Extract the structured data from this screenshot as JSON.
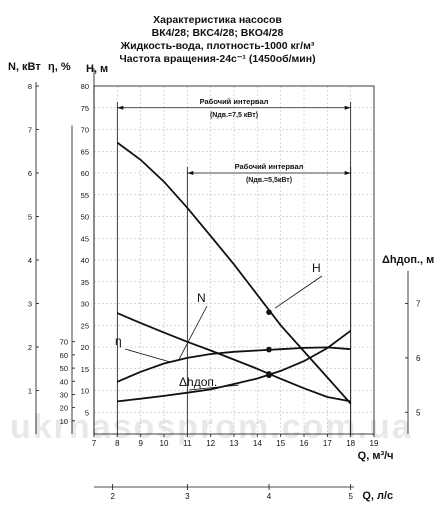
{
  "title_lines": [
    "Характеристика насосов",
    "ВК4/28; ВКС4/28; ВКО4/28",
    "Жидкость-вода, плотность-1000 кг/м³",
    "Частота вращения-24с⁻¹ (1450об/мин)"
  ],
  "watermark": "ukrnasosprom.com.ua",
  "colors": {
    "curve": "#111111",
    "grid": "#b0b0b0",
    "background": "#ffffff"
  },
  "chart_data": {
    "type": "line",
    "grid": true,
    "x_axis": {
      "label": "Q, м³/ч",
      "range": [
        7,
        19
      ],
      "ticks": [
        "7",
        "8",
        "9",
        "10",
        "11",
        "12",
        "13",
        "14",
        "15",
        "16",
        "17",
        "18",
        "19"
      ]
    },
    "x2_axis": {
      "label": "Q, л/с",
      "ticks": [
        {
          "label": "2",
          "q_m3h": 7.8
        },
        {
          "label": "3",
          "q_m3h": 11.0
        },
        {
          "label": "4",
          "q_m3h": 14.5
        },
        {
          "label": "5",
          "q_m3h": 18.0
        }
      ]
    },
    "h_axis": {
      "label": "Н, м",
      "range": [
        0,
        80
      ],
      "ticks": [
        "5",
        "10",
        "15",
        "20",
        "25",
        "30",
        "35",
        "40",
        "45",
        "50",
        "55",
        "60",
        "65",
        "70",
        "75",
        "80"
      ]
    },
    "n_axis": {
      "label": "N, кВт",
      "ticks": [
        "1",
        "2",
        "3",
        "4",
        "5",
        "6",
        "7",
        "8"
      ],
      "range": [
        0,
        8
      ]
    },
    "eta_axis": {
      "label": "η, %",
      "ticks": [
        "10",
        "20",
        "30",
        "40",
        "50",
        "60",
        "70"
      ],
      "range": [
        0,
        80
      ]
    },
    "npsh_axis": {
      "label": "Δhдоп., м",
      "ticks": [
        "5",
        "6",
        "7"
      ],
      "range": [
        4.6,
        8.8
      ]
    },
    "series": [
      {
        "name": "Н",
        "label_pos_q": 17,
        "points": [
          [
            8,
            67
          ],
          [
            9,
            63
          ],
          [
            10,
            58
          ],
          [
            11,
            52
          ],
          [
            12,
            45.5
          ],
          [
            13,
            39
          ],
          [
            14,
            32
          ],
          [
            15,
            25
          ],
          [
            16,
            19
          ],
          [
            17,
            13
          ],
          [
            18,
            7
          ]
        ]
      },
      {
        "name": "N",
        "label_pos_q": 11.0,
        "points": [
          [
            8,
            2.78
          ],
          [
            9,
            2.55
          ],
          [
            10,
            2.33
          ],
          [
            11,
            2.12
          ],
          [
            12,
            1.92
          ],
          [
            13,
            1.71
          ],
          [
            14,
            1.5
          ],
          [
            15,
            1.27
          ],
          [
            16,
            1.05
          ],
          [
            17,
            0.85
          ],
          [
            18,
            0.75
          ]
        ]
      },
      {
        "name": "η",
        "label_pos_q": 8.0,
        "points": [
          [
            8,
            12
          ],
          [
            9,
            14.3
          ],
          [
            10,
            16.2
          ],
          [
            11,
            17.5
          ],
          [
            12,
            18.4
          ],
          [
            13,
            18.9
          ],
          [
            14,
            19.2
          ],
          [
            15,
            19.5
          ],
          [
            16,
            19.8
          ],
          [
            17,
            19.9
          ],
          [
            18,
            19.5
          ]
        ]
      },
      {
        "name": "Δhдоп.",
        "label_pos_q": 12.0,
        "points": [
          [
            8,
            5.2
          ],
          [
            9,
            5.25
          ],
          [
            10,
            5.3
          ],
          [
            11,
            5.36
          ],
          [
            12,
            5.42
          ],
          [
            13,
            5.52
          ],
          [
            14,
            5.62
          ],
          [
            15,
            5.76
          ],
          [
            16,
            5.94
          ],
          [
            17,
            6.18
          ],
          [
            18,
            6.5
          ]
        ]
      }
    ],
    "markers": [
      {
        "series": "Н",
        "q": 14.5,
        "v": 28
      },
      {
        "series": "η",
        "q": 14.5,
        "v": 19.4
      },
      {
        "series": "N",
        "q": 14.5,
        "v": 1.38
      },
      {
        "series": "Δhдоп.",
        "q": 14.5,
        "v": 5.68
      }
    ],
    "annotations": [
      {
        "text": "Рабочий интервал",
        "sub": "(Nдв.=7,5 кВт)",
        "q_from": 8.0,
        "q_to": 18.0,
        "h": 75
      },
      {
        "text": "Рабочий интервал",
        "sub": "(Nдв.=5,5кВт)",
        "q_from": 11.0,
        "q_to": 18.0,
        "h": 60
      }
    ]
  }
}
